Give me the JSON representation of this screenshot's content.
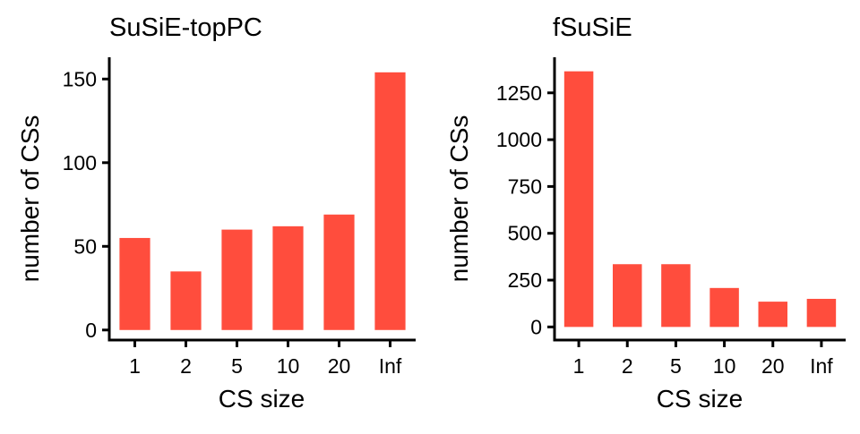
{
  "colors": {
    "bar": "#FF4D3D",
    "axis": "#000000",
    "text": "#000000"
  },
  "chart_data": [
    {
      "type": "bar",
      "title": "SuSiE-topPC",
      "xlabel": "CS size",
      "ylabel": "number of CSs",
      "categories": [
        "1",
        "2",
        "5",
        "10",
        "20",
        "Inf"
      ],
      "values": [
        55,
        35,
        60,
        62,
        69,
        154
      ],
      "yticks": [
        0,
        50,
        100,
        150
      ],
      "ylim": [
        -6,
        163
      ],
      "grid": false
    },
    {
      "type": "bar",
      "title": "fSuSiE",
      "xlabel": "CS size",
      "ylabel": "number of CSs",
      "categories": [
        "1",
        "2",
        "5",
        "10",
        "20",
        "Inf"
      ],
      "values": [
        1365,
        335,
        335,
        208,
        135,
        150
      ],
      "yticks": [
        0,
        250,
        500,
        750,
        1000,
        1250
      ],
      "ylim": [
        -70,
        1440
      ],
      "grid": false
    }
  ]
}
